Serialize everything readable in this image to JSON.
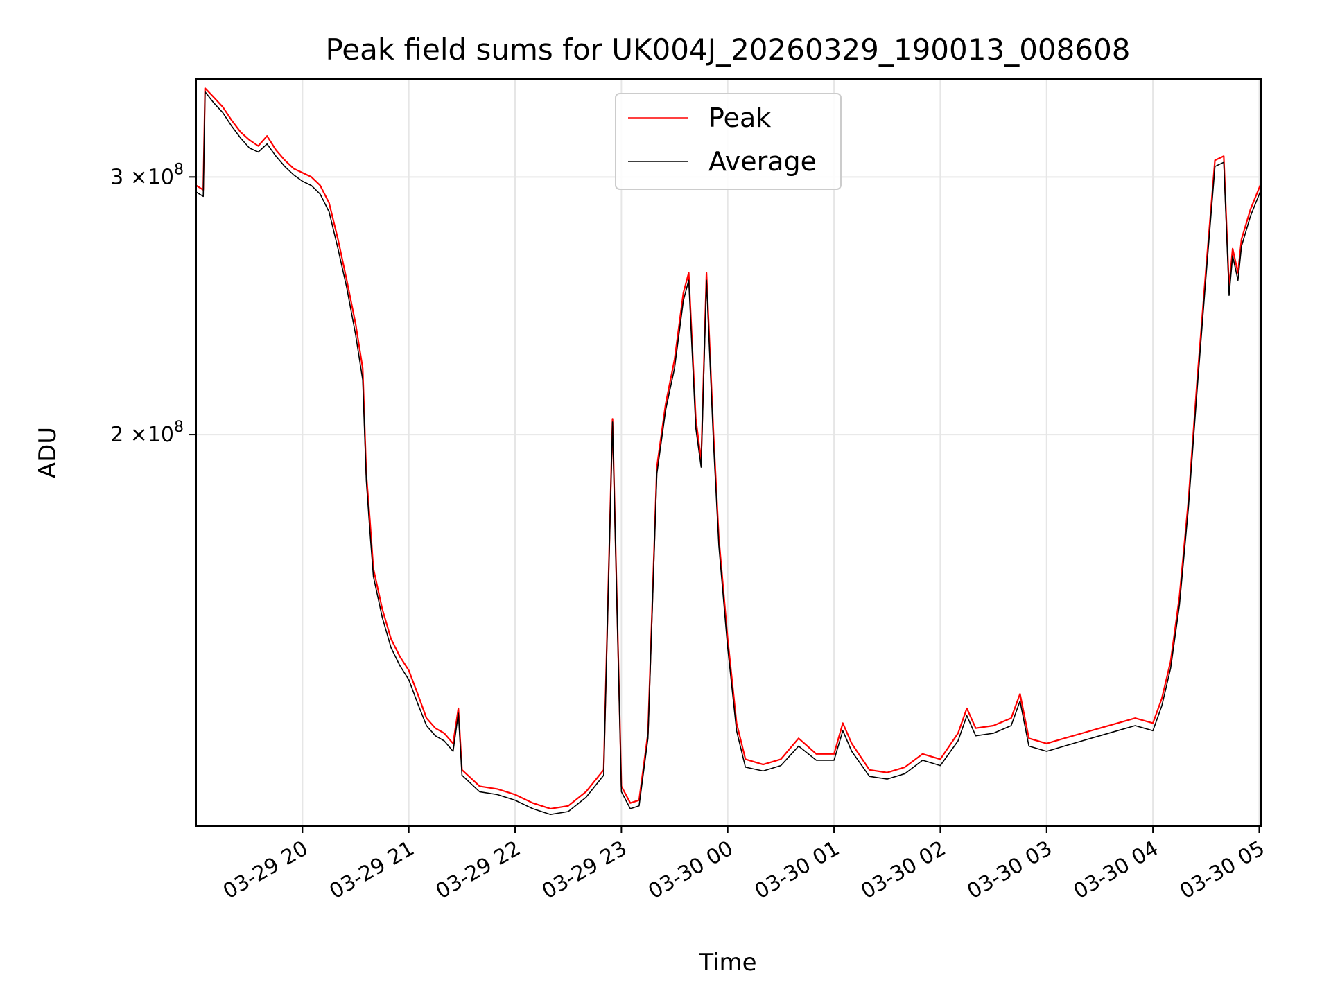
{
  "chart_data": {
    "type": "line",
    "title": "Peak field sums for UK004J_20260329_190013_008608",
    "xlabel": "Time",
    "ylabel": "ADU",
    "y_scale": "log",
    "ylim": [
      108000000,
      350000000
    ],
    "xlim": [
      "2026-03-29 19:00",
      "2026-03-30 05:01"
    ],
    "x_ticks": [
      "03-29 20",
      "03-29 21",
      "03-29 22",
      "03-29 23",
      "03-30 00",
      "03-30 01",
      "03-30 02",
      "03-30 03",
      "03-30 04",
      "03-30 05"
    ],
    "x_tick_times": [
      "2026-03-29 20:00",
      "2026-03-29 21:00",
      "2026-03-29 22:00",
      "2026-03-29 23:00",
      "2026-03-30 00:00",
      "2026-03-30 01:00",
      "2026-03-30 02:00",
      "2026-03-30 03:00",
      "2026-03-30 04:00",
      "2026-03-30 05:00"
    ],
    "y_ticks": [
      {
        "value": 300000000,
        "mantissa": "3",
        "times": "×10",
        "exp": "8"
      },
      {
        "value": 200000000,
        "mantissa": "2",
        "times": "×10",
        "exp": "8"
      }
    ],
    "grid": true,
    "legend_position": "top-center",
    "series": [
      {
        "name": "Peak",
        "color": "#ff0000",
        "points": [
          [
            "2026-03-29 19:00",
            296000000
          ],
          [
            "2026-03-29 19:04",
            294000000
          ],
          [
            "2026-03-29 19:05",
            345000000
          ],
          [
            "2026-03-29 19:10",
            340000000
          ],
          [
            "2026-03-29 19:15",
            335000000
          ],
          [
            "2026-03-29 19:20",
            328000000
          ],
          [
            "2026-03-29 19:25",
            322000000
          ],
          [
            "2026-03-29 19:30",
            318000000
          ],
          [
            "2026-03-29 19:35",
            315000000
          ],
          [
            "2026-03-29 19:40",
            320000000
          ],
          [
            "2026-03-29 19:45",
            313000000
          ],
          [
            "2026-03-29 19:50",
            308000000
          ],
          [
            "2026-03-29 19:55",
            304000000
          ],
          [
            "2026-03-29 20:00",
            302000000
          ],
          [
            "2026-03-29 20:05",
            300000000
          ],
          [
            "2026-03-29 20:10",
            296000000
          ],
          [
            "2026-03-29 20:15",
            288000000
          ],
          [
            "2026-03-29 20:20",
            272000000
          ],
          [
            "2026-03-29 20:25",
            255000000
          ],
          [
            "2026-03-29 20:30",
            238000000
          ],
          [
            "2026-03-29 20:34",
            222000000
          ],
          [
            "2026-03-29 20:36",
            188000000
          ],
          [
            "2026-03-29 20:38",
            175000000
          ],
          [
            "2026-03-29 20:40",
            162000000
          ],
          [
            "2026-03-29 20:45",
            152000000
          ],
          [
            "2026-03-29 20:50",
            145000000
          ],
          [
            "2026-03-29 20:55",
            141000000
          ],
          [
            "2026-03-29 21:00",
            138000000
          ],
          [
            "2026-03-29 21:05",
            133000000
          ],
          [
            "2026-03-29 21:10",
            128000000
          ],
          [
            "2026-03-29 21:15",
            126000000
          ],
          [
            "2026-03-29 21:20",
            125000000
          ],
          [
            "2026-03-29 21:25",
            123000000
          ],
          [
            "2026-03-29 21:28",
            130000000
          ],
          [
            "2026-03-29 21:30",
            118000000
          ],
          [
            "2026-03-29 21:40",
            115000000
          ],
          [
            "2026-03-29 21:50",
            114500000
          ],
          [
            "2026-03-29 22:00",
            113500000
          ],
          [
            "2026-03-29 22:10",
            112000000
          ],
          [
            "2026-03-29 22:20",
            111000000
          ],
          [
            "2026-03-29 22:30",
            111500000
          ],
          [
            "2026-03-29 22:40",
            114000000
          ],
          [
            "2026-03-29 22:50",
            118000000
          ],
          [
            "2026-03-29 22:55",
            205000000
          ],
          [
            "2026-03-29 23:00",
            115000000
          ],
          [
            "2026-03-29 23:05",
            112000000
          ],
          [
            "2026-03-29 23:10",
            112500000
          ],
          [
            "2026-03-29 23:15",
            125000000
          ],
          [
            "2026-03-29 23:20",
            190000000
          ],
          [
            "2026-03-29 23:25",
            210000000
          ],
          [
            "2026-03-29 23:30",
            225000000
          ],
          [
            "2026-03-29 23:35",
            250000000
          ],
          [
            "2026-03-29 23:38",
            258000000
          ],
          [
            "2026-03-29 23:42",
            205000000
          ],
          [
            "2026-03-29 23:45",
            192000000
          ],
          [
            "2026-03-29 23:48",
            258000000
          ],
          [
            "2026-03-29 23:52",
            200000000
          ],
          [
            "2026-03-29 23:55",
            170000000
          ],
          [
            "2026-03-30 00:00",
            145000000
          ],
          [
            "2026-03-30 00:05",
            127000000
          ],
          [
            "2026-03-30 00:10",
            120000000
          ],
          [
            "2026-03-30 00:20",
            119000000
          ],
          [
            "2026-03-30 00:30",
            120000000
          ],
          [
            "2026-03-30 00:40",
            124000000
          ],
          [
            "2026-03-30 00:50",
            121000000
          ],
          [
            "2026-03-30 01:00",
            121000000
          ],
          [
            "2026-03-30 01:05",
            127000000
          ],
          [
            "2026-03-30 01:10",
            123000000
          ],
          [
            "2026-03-30 01:20",
            118000000
          ],
          [
            "2026-03-30 01:30",
            117500000
          ],
          [
            "2026-03-30 01:40",
            118500000
          ],
          [
            "2026-03-30 01:50",
            121000000
          ],
          [
            "2026-03-30 02:00",
            120000000
          ],
          [
            "2026-03-30 02:10",
            125000000
          ],
          [
            "2026-03-30 02:15",
            130000000
          ],
          [
            "2026-03-30 02:20",
            126000000
          ],
          [
            "2026-03-30 02:30",
            126500000
          ],
          [
            "2026-03-30 02:40",
            128000000
          ],
          [
            "2026-03-30 02:45",
            133000000
          ],
          [
            "2026-03-30 02:50",
            124000000
          ],
          [
            "2026-03-30 03:00",
            123000000
          ],
          [
            "2026-03-30 03:10",
            124000000
          ],
          [
            "2026-03-30 03:20",
            125000000
          ],
          [
            "2026-03-30 03:30",
            126000000
          ],
          [
            "2026-03-30 03:40",
            127000000
          ],
          [
            "2026-03-30 03:50",
            128000000
          ],
          [
            "2026-03-30 04:00",
            127000000
          ],
          [
            "2026-03-30 04:05",
            132000000
          ],
          [
            "2026-03-30 04:10",
            140000000
          ],
          [
            "2026-03-30 04:15",
            155000000
          ],
          [
            "2026-03-30 04:20",
            180000000
          ],
          [
            "2026-03-30 04:25",
            218000000
          ],
          [
            "2026-03-30 04:30",
            260000000
          ],
          [
            "2026-03-30 04:35",
            308000000
          ],
          [
            "2026-03-30 04:40",
            310000000
          ],
          [
            "2026-03-30 04:43",
            252000000
          ],
          [
            "2026-03-30 04:45",
            268000000
          ],
          [
            "2026-03-30 04:48",
            258000000
          ],
          [
            "2026-03-30 04:50",
            272000000
          ],
          [
            "2026-03-30 04:55",
            285000000
          ],
          [
            "2026-03-30 05:01",
            297000000
          ]
        ]
      },
      {
        "name": "Average",
        "color": "#000000",
        "points": [
          [
            "2026-03-29 19:00",
            293000000
          ],
          [
            "2026-03-29 19:04",
            291000000
          ],
          [
            "2026-03-29 19:05",
            343000000
          ],
          [
            "2026-03-29 19:10",
            337000000
          ],
          [
            "2026-03-29 19:15",
            332000000
          ],
          [
            "2026-03-29 19:20",
            325000000
          ],
          [
            "2026-03-29 19:25",
            319000000
          ],
          [
            "2026-03-29 19:30",
            314000000
          ],
          [
            "2026-03-29 19:35",
            312000000
          ],
          [
            "2026-03-29 19:40",
            316000000
          ],
          [
            "2026-03-29 19:45",
            310000000
          ],
          [
            "2026-03-29 19:50",
            305000000
          ],
          [
            "2026-03-29 19:55",
            301000000
          ],
          [
            "2026-03-29 20:00",
            298000000
          ],
          [
            "2026-03-29 20:05",
            296000000
          ],
          [
            "2026-03-29 20:10",
            292000000
          ],
          [
            "2026-03-29 20:15",
            284000000
          ],
          [
            "2026-03-29 20:20",
            268000000
          ],
          [
            "2026-03-29 20:25",
            252000000
          ],
          [
            "2026-03-29 20:30",
            234000000
          ],
          [
            "2026-03-29 20:34",
            218000000
          ],
          [
            "2026-03-29 20:36",
            186000000
          ],
          [
            "2026-03-29 20:38",
            172000000
          ],
          [
            "2026-03-29 20:40",
            160000000
          ],
          [
            "2026-03-29 20:45",
            150000000
          ],
          [
            "2026-03-29 20:50",
            143000000
          ],
          [
            "2026-03-29 20:55",
            139000000
          ],
          [
            "2026-03-29 21:00",
            136000000
          ],
          [
            "2026-03-29 21:05",
            131000000
          ],
          [
            "2026-03-29 21:10",
            126500000
          ],
          [
            "2026-03-29 21:15",
            124500000
          ],
          [
            "2026-03-29 21:20",
            123500000
          ],
          [
            "2026-03-29 21:25",
            121500000
          ],
          [
            "2026-03-29 21:28",
            129000000
          ],
          [
            "2026-03-29 21:30",
            117000000
          ],
          [
            "2026-03-29 21:40",
            114000000
          ],
          [
            "2026-03-29 21:50",
            113500000
          ],
          [
            "2026-03-29 22:00",
            112500000
          ],
          [
            "2026-03-29 22:10",
            111000000
          ],
          [
            "2026-03-29 22:20",
            110000000
          ],
          [
            "2026-03-29 22:30",
            110500000
          ],
          [
            "2026-03-29 22:40",
            113000000
          ],
          [
            "2026-03-29 22:50",
            117000000
          ],
          [
            "2026-03-29 22:55",
            204000000
          ],
          [
            "2026-03-29 23:00",
            114000000
          ],
          [
            "2026-03-29 23:05",
            111000000
          ],
          [
            "2026-03-29 23:10",
            111500000
          ],
          [
            "2026-03-29 23:15",
            124000000
          ],
          [
            "2026-03-29 23:20",
            188000000
          ],
          [
            "2026-03-29 23:25",
            208000000
          ],
          [
            "2026-03-29 23:30",
            222000000
          ],
          [
            "2026-03-29 23:35",
            247000000
          ],
          [
            "2026-03-29 23:38",
            255000000
          ],
          [
            "2026-03-29 23:42",
            202000000
          ],
          [
            "2026-03-29 23:45",
            190000000
          ],
          [
            "2026-03-29 23:48",
            255000000
          ],
          [
            "2026-03-29 23:52",
            197000000
          ],
          [
            "2026-03-29 23:55",
            168000000
          ],
          [
            "2026-03-30 00:00",
            143000000
          ],
          [
            "2026-03-30 00:05",
            125500000
          ],
          [
            "2026-03-30 00:10",
            118500000
          ],
          [
            "2026-03-30 00:20",
            117800000
          ],
          [
            "2026-03-30 00:30",
            118800000
          ],
          [
            "2026-03-30 00:40",
            122500000
          ],
          [
            "2026-03-30 00:50",
            119800000
          ],
          [
            "2026-03-30 01:00",
            119800000
          ],
          [
            "2026-03-30 01:05",
            125500000
          ],
          [
            "2026-03-30 01:10",
            121500000
          ],
          [
            "2026-03-30 01:20",
            116800000
          ],
          [
            "2026-03-30 01:30",
            116300000
          ],
          [
            "2026-03-30 01:40",
            117300000
          ],
          [
            "2026-03-30 01:50",
            119800000
          ],
          [
            "2026-03-30 02:00",
            118800000
          ],
          [
            "2026-03-30 02:10",
            123500000
          ],
          [
            "2026-03-30 02:15",
            128500000
          ],
          [
            "2026-03-30 02:20",
            124500000
          ],
          [
            "2026-03-30 02:30",
            125000000
          ],
          [
            "2026-03-30 02:40",
            126500000
          ],
          [
            "2026-03-30 02:45",
            131500000
          ],
          [
            "2026-03-30 02:50",
            122500000
          ],
          [
            "2026-03-30 03:00",
            121500000
          ],
          [
            "2026-03-30 03:10",
            122500000
          ],
          [
            "2026-03-30 03:20",
            123500000
          ],
          [
            "2026-03-30 03:30",
            124500000
          ],
          [
            "2026-03-30 03:40",
            125500000
          ],
          [
            "2026-03-30 03:50",
            126500000
          ],
          [
            "2026-03-30 04:00",
            125500000
          ],
          [
            "2026-03-30 04:05",
            130500000
          ],
          [
            "2026-03-30 04:10",
            138500000
          ],
          [
            "2026-03-30 04:15",
            153000000
          ],
          [
            "2026-03-30 04:20",
            178000000
          ],
          [
            "2026-03-30 04:25",
            215000000
          ],
          [
            "2026-03-30 04:30",
            257000000
          ],
          [
            "2026-03-30 04:35",
            305000000
          ],
          [
            "2026-03-30 04:40",
            307000000
          ],
          [
            "2026-03-30 04:43",
            249000000
          ],
          [
            "2026-03-30 04:45",
            265000000
          ],
          [
            "2026-03-30 04:48",
            255000000
          ],
          [
            "2026-03-30 04:50",
            269000000
          ],
          [
            "2026-03-30 04:55",
            282000000
          ],
          [
            "2026-03-30 05:01",
            294000000
          ]
        ]
      }
    ]
  }
}
